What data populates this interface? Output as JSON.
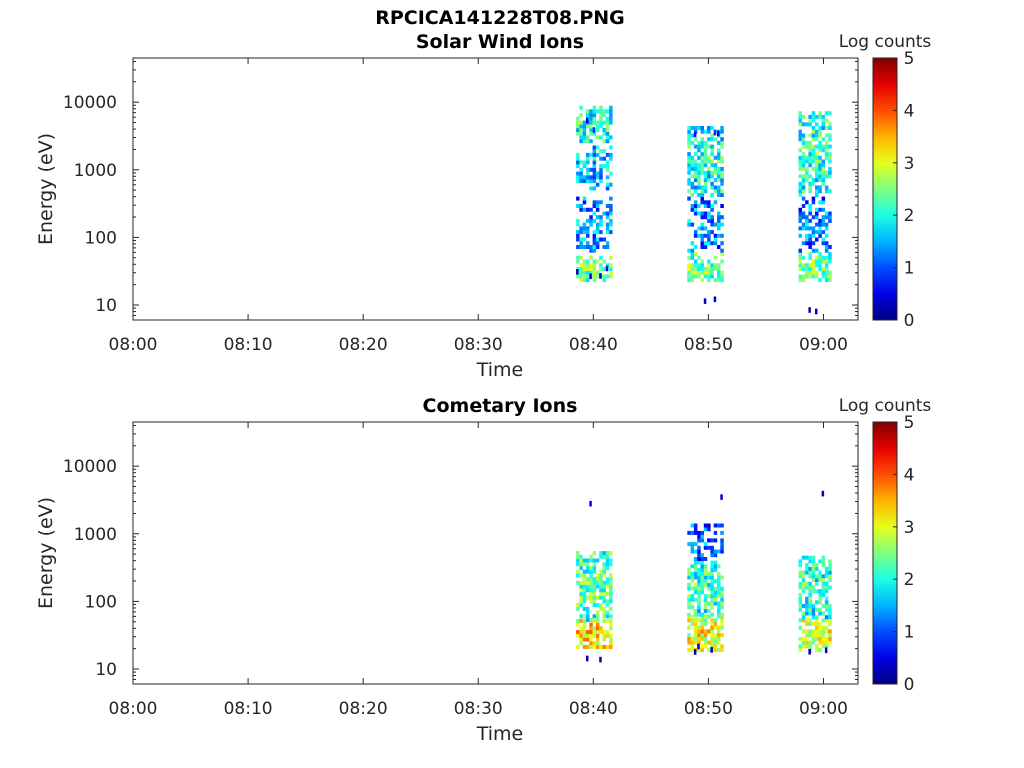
{
  "figure_title": "RPCICA141228T08.PNG",
  "chart_data": [
    {
      "type": "heatmap",
      "title": "Solar Wind Ions",
      "xlabel": "Time",
      "ylabel": "Energy (eV)",
      "x_ticks": [
        "08:00",
        "08:10",
        "08:20",
        "08:30",
        "08:40",
        "08:50",
        "09:00"
      ],
      "x_range": [
        "08:00",
        "09:03"
      ],
      "y_scale": "log",
      "y_ticks": [
        "10",
        "100",
        "1000",
        "10000"
      ],
      "y_range": [
        6,
        45000
      ],
      "colorbar": {
        "label": "Log counts",
        "ticks": [
          "0",
          "1",
          "2",
          "3",
          "4",
          "5"
        ],
        "range": [
          0,
          5
        ],
        "colormap": "jet"
      },
      "bursts": [
        {
          "start": "08:38:30",
          "end": "08:41:45",
          "energy_range": [
            20,
            8500
          ],
          "clusters": [
            {
              "e_lo": 22,
              "e_hi": 50,
              "level": 2.3
            },
            {
              "e_lo": 60,
              "e_hi": 400,
              "level": 1.2
            },
            {
              "e_lo": 500,
              "e_hi": 2200,
              "level": 1.4
            },
            {
              "e_lo": 2500,
              "e_hi": 8500,
              "level": 1.8
            }
          ]
        },
        {
          "start": "08:48:10",
          "end": "08:51:15",
          "energy_range": [
            8,
            6000
          ],
          "clusters": [
            {
              "e_lo": 22,
              "e_hi": 55,
              "level": 2.2
            },
            {
              "e_lo": 60,
              "e_hi": 400,
              "level": 1.1
            },
            {
              "e_lo": 400,
              "e_hi": 4000,
              "level": 1.8
            }
          ]
        },
        {
          "start": "08:57:50",
          "end": "09:00:50",
          "energy_range": [
            7,
            7000
          ],
          "clusters": [
            {
              "e_lo": 22,
              "e_hi": 55,
              "level": 2.2
            },
            {
              "e_lo": 60,
              "e_hi": 400,
              "level": 1.1
            },
            {
              "e_lo": 400,
              "e_hi": 7000,
              "level": 1.9
            }
          ]
        }
      ]
    },
    {
      "type": "heatmap",
      "title": "Cometary Ions",
      "xlabel": "Time",
      "ylabel": "Energy (eV)",
      "x_ticks": [
        "08:00",
        "08:10",
        "08:20",
        "08:30",
        "08:40",
        "08:50",
        "09:00"
      ],
      "x_range": [
        "08:00",
        "09:03"
      ],
      "y_scale": "log",
      "y_ticks": [
        "10",
        "100",
        "1000",
        "10000"
      ],
      "y_range": [
        6,
        45000
      ],
      "colorbar": {
        "label": "Log counts",
        "ticks": [
          "0",
          "1",
          "2",
          "3",
          "4",
          "5"
        ],
        "range": [
          0,
          5
        ],
        "colormap": "jet"
      },
      "bursts": [
        {
          "start": "08:38:30",
          "end": "08:41:45",
          "energy_range": [
            8,
            6000
          ],
          "clusters": [
            {
              "e_lo": 20,
              "e_hi": 50,
              "level": 3.1
            },
            {
              "e_lo": 50,
              "e_hi": 550,
              "level": 2.1
            }
          ]
        },
        {
          "start": "08:48:10",
          "end": "08:51:15",
          "energy_range": [
            15,
            6000
          ],
          "clusters": [
            {
              "e_lo": 18,
              "e_hi": 60,
              "level": 2.9
            },
            {
              "e_lo": 60,
              "e_hi": 400,
              "level": 2.0
            },
            {
              "e_lo": 400,
              "e_hi": 1300,
              "level": 1.0
            }
          ]
        },
        {
          "start": "08:57:50",
          "end": "09:00:50",
          "energy_range": [
            15,
            7000
          ],
          "clusters": [
            {
              "e_lo": 18,
              "e_hi": 55,
              "level": 2.8
            },
            {
              "e_lo": 55,
              "e_hi": 450,
              "level": 1.9
            }
          ]
        }
      ]
    }
  ]
}
